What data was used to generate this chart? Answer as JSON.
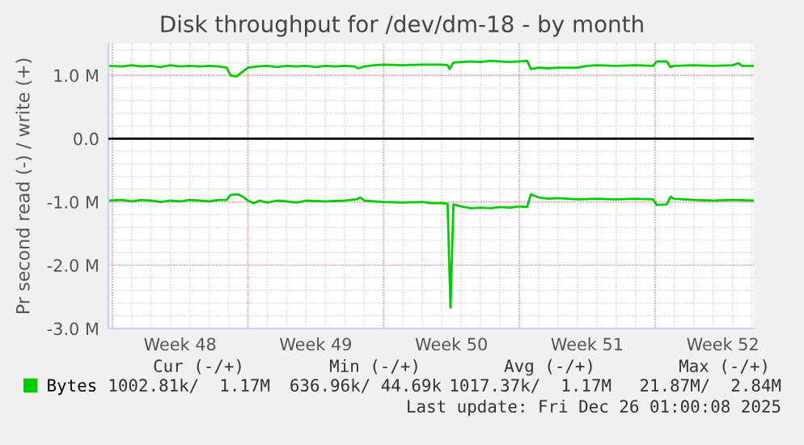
{
  "chart_data": {
    "type": "line",
    "title": "Disk throughput for /dev/dm-18 - by month",
    "ylabel": "Pr second read (-) / write (+)",
    "xlim": [
      "2025-11-23T19:12",
      "2025-12-27T02:24"
    ],
    "xticks": [
      {
        "value": "2025-11-24",
        "label": null
      },
      {
        "value": "2025-11-27T12:00",
        "label": "Week 48"
      },
      {
        "value": "2025-12-01",
        "label": null
      },
      {
        "value": "2025-12-04T12:00",
        "label": "Week 49"
      },
      {
        "value": "2025-12-08",
        "label": null
      },
      {
        "value": "2025-12-11T12:00",
        "label": "Week 50"
      },
      {
        "value": "2025-12-15",
        "label": null
      },
      {
        "value": "2025-12-18T12:00",
        "label": "Week 51"
      },
      {
        "value": "2025-12-22",
        "label": null
      },
      {
        "value": "2025-12-25T12:00",
        "label": "Week 52"
      }
    ],
    "ylim": [
      -3.0,
      1.5
    ],
    "yticks": [
      {
        "value": -3.0,
        "label": "-3.0 M"
      },
      {
        "value": -2.0,
        "label": "-2.0 M"
      },
      {
        "value": -1.0,
        "label": "-1.0 M"
      },
      {
        "value": 0,
        "label": "0.0"
      },
      {
        "value": 1.0,
        "label": "1.0 M"
      }
    ],
    "grid": true,
    "legend": "bottom left",
    "ref_lines": [
      {
        "axis": "y",
        "value": 0,
        "color": "#000000"
      }
    ],
    "series": [
      {
        "name": "Bytes",
        "color": "#00cc00",
        "x": [
          "2025-11-23T19:12",
          "2025-11-24T12:00",
          "2025-11-25",
          "2025-11-25T12:00",
          "2025-11-26",
          "2025-11-26T12:00",
          "2025-11-27",
          "2025-11-27T12:00",
          "2025-11-28",
          "2025-11-28T12:00",
          "2025-11-29",
          "2025-11-29T12:00",
          "2025-11-29T21:36",
          "2025-11-30T02:24",
          "2025-11-30T09:36",
          "2025-11-30T16:48",
          "2025-12-01",
          "2025-12-01T12:00",
          "2025-12-02",
          "2025-12-02T12:00",
          "2025-12-03",
          "2025-12-03T12:00",
          "2025-12-04",
          "2025-12-04T12:00",
          "2025-12-05",
          "2025-12-05T12:00",
          "2025-12-06",
          "2025-12-06T12:00",
          "2025-12-06T16:48",
          "2025-12-07",
          "2025-12-07T12:00",
          "2025-12-08",
          "2025-12-09",
          "2025-12-10",
          "2025-12-11",
          "2025-12-11T07:12",
          "2025-12-11T09:36",
          "2025-12-11T14:24",
          "2025-12-12",
          "2025-12-12T12:00",
          "2025-12-13",
          "2025-12-13T12:00",
          "2025-12-14",
          "2025-12-14T12:00",
          "2025-12-15",
          "2025-12-15T09:36",
          "2025-12-15T14:24",
          "2025-12-16",
          "2025-12-16T12:00",
          "2025-12-17",
          "2025-12-18",
          "2025-12-18T12:00",
          "2025-12-19",
          "2025-12-20",
          "2025-12-21",
          "2025-12-21T21:36",
          "2025-12-22T02:24",
          "2025-12-22T14:24",
          "2025-12-22T19:12",
          "2025-12-23",
          "2025-12-24",
          "2025-12-25",
          "2025-12-26",
          "2025-12-26T07:12",
          "2025-12-26T12:00",
          "2025-12-27T02:24"
        ],
        "values": [
          1.15,
          1.14,
          1.16,
          1.14,
          1.15,
          1.13,
          1.16,
          1.14,
          1.15,
          1.14,
          1.15,
          1.14,
          1.12,
          1.0,
          0.98,
          1.05,
          1.12,
          1.14,
          1.15,
          1.13,
          1.15,
          1.14,
          1.15,
          1.13,
          1.15,
          1.14,
          1.15,
          1.14,
          1.11,
          1.14,
          1.16,
          1.17,
          1.16,
          1.17,
          1.17,
          1.16,
          1.1,
          1.2,
          1.21,
          1.22,
          1.21,
          1.23,
          1.22,
          1.21,
          1.22,
          1.23,
          1.1,
          1.12,
          1.11,
          1.12,
          1.12,
          1.15,
          1.16,
          1.15,
          1.16,
          1.15,
          1.22,
          1.22,
          1.13,
          1.15,
          1.16,
          1.15,
          1.16,
          1.19,
          1.15,
          1.15
        ]
      },
      {
        "color": "#00cc00",
        "x": [
          "2025-11-23T19:12",
          "2025-11-24T12:00",
          "2025-11-25",
          "2025-11-25T12:00",
          "2025-11-26",
          "2025-11-26T12:00",
          "2025-11-27",
          "2025-11-27T12:00",
          "2025-11-28",
          "2025-11-28T12:00",
          "2025-11-29",
          "2025-11-29T12:00",
          "2025-11-29T21:36",
          "2025-11-30T02:24",
          "2025-11-30T12:00",
          "2025-11-30T19:12",
          "2025-12-01",
          "2025-12-01T07:12",
          "2025-12-01T14:24",
          "2025-12-02",
          "2025-12-02T12:00",
          "2025-12-03",
          "2025-12-03T12:00",
          "2025-12-04",
          "2025-12-05",
          "2025-12-06",
          "2025-12-06T14:24",
          "2025-12-06T19:12",
          "2025-12-07",
          "2025-12-07T12:00",
          "2025-12-08",
          "2025-12-09",
          "2025-12-10",
          "2025-12-10T12:00",
          "2025-12-11",
          "2025-12-11T07:12",
          "2025-12-11T10:48",
          "2025-12-11T14:24",
          "2025-12-12",
          "2025-12-12T12:00",
          "2025-12-13",
          "2025-12-13T12:00",
          "2025-12-14",
          "2025-12-14T12:00",
          "2025-12-15",
          "2025-12-15T09:36",
          "2025-12-15T14:24",
          "2025-12-16",
          "2025-12-16T12:00",
          "2025-12-17",
          "2025-12-18",
          "2025-12-19",
          "2025-12-20",
          "2025-12-21",
          "2025-12-21T21:36",
          "2025-12-22T02:24",
          "2025-12-22T14:24",
          "2025-12-22T19:12",
          "2025-12-23",
          "2025-12-24",
          "2025-12-25",
          "2025-12-26",
          "2025-12-27T02:24"
        ],
        "values": [
          -0.98,
          -0.97,
          -0.99,
          -0.97,
          -0.98,
          -1.0,
          -0.98,
          -0.99,
          -0.97,
          -0.98,
          -0.99,
          -0.97,
          -0.97,
          -0.89,
          -0.88,
          -0.93,
          -0.98,
          -1.02,
          -0.98,
          -1.01,
          -0.98,
          -0.99,
          -1.01,
          -0.98,
          -0.99,
          -0.98,
          -0.96,
          -0.93,
          -0.98,
          -0.99,
          -1.0,
          -1.01,
          -1.0,
          -1.02,
          -1.02,
          -1.03,
          -2.67,
          -1.04,
          -1.07,
          -1.1,
          -1.09,
          -1.1,
          -1.08,
          -1.09,
          -1.07,
          -1.08,
          -0.88,
          -0.93,
          -0.95,
          -0.94,
          -0.96,
          -0.95,
          -0.96,
          -0.95,
          -0.96,
          -1.05,
          -1.04,
          -0.92,
          -0.95,
          -0.97,
          -0.98,
          -0.97,
          -0.98
        ]
      }
    ],
    "annotations": [
      "Cur (-/+)",
      "Min (-/+)",
      "Avg (-/+)",
      "Max (-/+)",
      "1002.81k/  1.17M",
      "636.96k/ 44.69k",
      "1017.37k/  1.17M",
      "21.87M/  2.84M",
      "Last update: Fri Dec 26 01:00:08 2025"
    ]
  }
}
